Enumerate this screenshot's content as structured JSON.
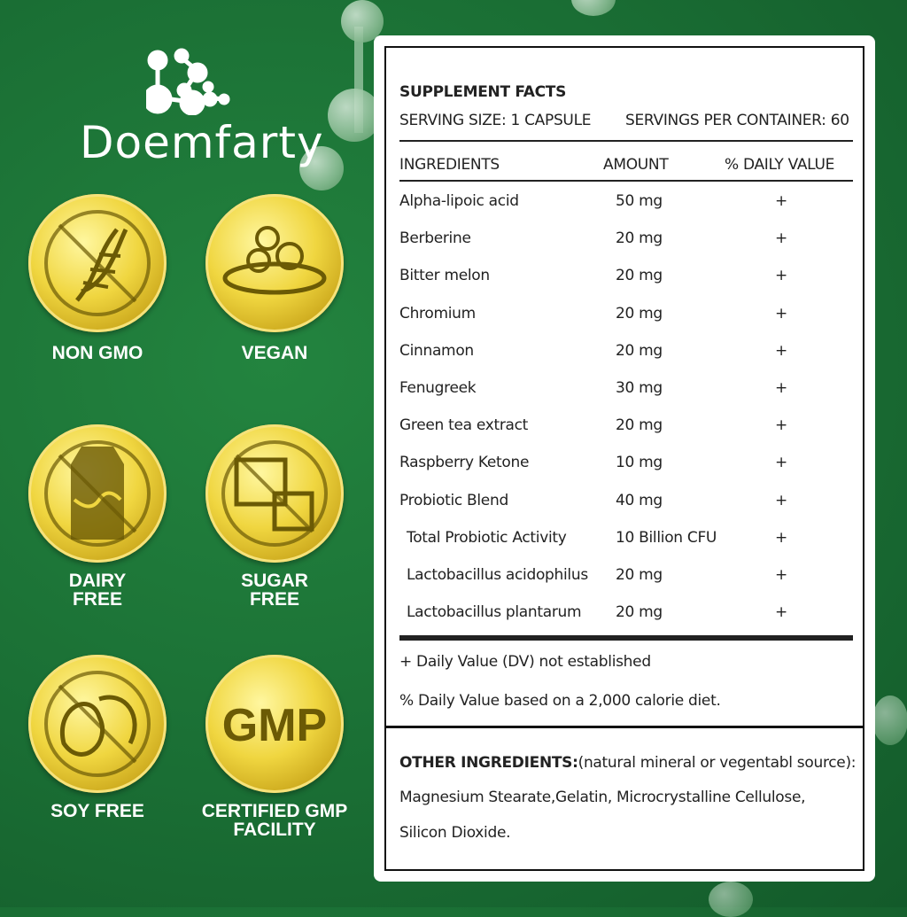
{
  "brand": {
    "name": "Doemfarty"
  },
  "badges": [
    {
      "label": "NON GMO",
      "icon": "dna-crossed-icon"
    },
    {
      "label": "VEGAN",
      "icon": "salad-bowl-icon"
    },
    {
      "label": "DAIRY FREE",
      "icon": "milk-carton-crossed-icon"
    },
    {
      "label": "SUGAR FREE",
      "icon": "sugar-cubes-crossed-icon"
    },
    {
      "label": "SOY FREE",
      "icon": "soybean-crossed-icon"
    },
    {
      "label": "CERTIFIED GMP FACILITY",
      "icon": "gmp-text-icon",
      "text": "GMP"
    }
  ],
  "facts": {
    "title": "SUPPLEMENT FACTS",
    "serving_size": "SERVING SIZE: 1 CAPSULE",
    "servings_per_container": "SERVINGS PER CONTAINER: 60",
    "headers": [
      "INGREDIENTS",
      "AMOUNT",
      "% DAILY VALUE"
    ],
    "rows": [
      {
        "name": "Alpha-lipoic acid",
        "amount": "50 mg",
        "dv": "+"
      },
      {
        "name": "Berberine",
        "amount": "20 mg",
        "dv": "+"
      },
      {
        "name": "Bitter melon",
        "amount": "20 mg",
        "dv": "+"
      },
      {
        "name": "Chromium",
        "amount": "20 mg",
        "dv": "+"
      },
      {
        "name": "Cinnamon",
        "amount": "20 mg",
        "dv": "+"
      },
      {
        "name": "Fenugreek",
        "amount": "30 mg",
        "dv": "+"
      },
      {
        "name": "Green tea extract",
        "amount": "20 mg",
        "dv": "+"
      },
      {
        "name": "Raspberry Ketone",
        "amount": "10 mg",
        "dv": "+"
      },
      {
        "name": "Probiotic Blend",
        "amount": "40 mg",
        "dv": "+"
      },
      {
        "name": "Total Probiotic Activity",
        "amount": "10 Billion CFU",
        "dv": "+",
        "indent": true
      },
      {
        "name": "Lactobacillus acidophilus",
        "amount": "20 mg",
        "dv": "+",
        "indent": true
      },
      {
        "name": "Lactobacillus plantarum",
        "amount": "20 mg",
        "dv": "+",
        "indent": true
      }
    ],
    "footnote_dv": "+  Daily Value (DV) not established",
    "footnote_calorie": "% Daily Value based on a 2,000 calorie diet.",
    "other_label": "OTHER INGREDIENTS:",
    "other_source": "(natural mineral or vegentabl source):",
    "other_line1": "Magnesium Stearate,Gelatin, Microcrystalline Cellulose,",
    "other_line2": "Silicon Dioxide."
  }
}
